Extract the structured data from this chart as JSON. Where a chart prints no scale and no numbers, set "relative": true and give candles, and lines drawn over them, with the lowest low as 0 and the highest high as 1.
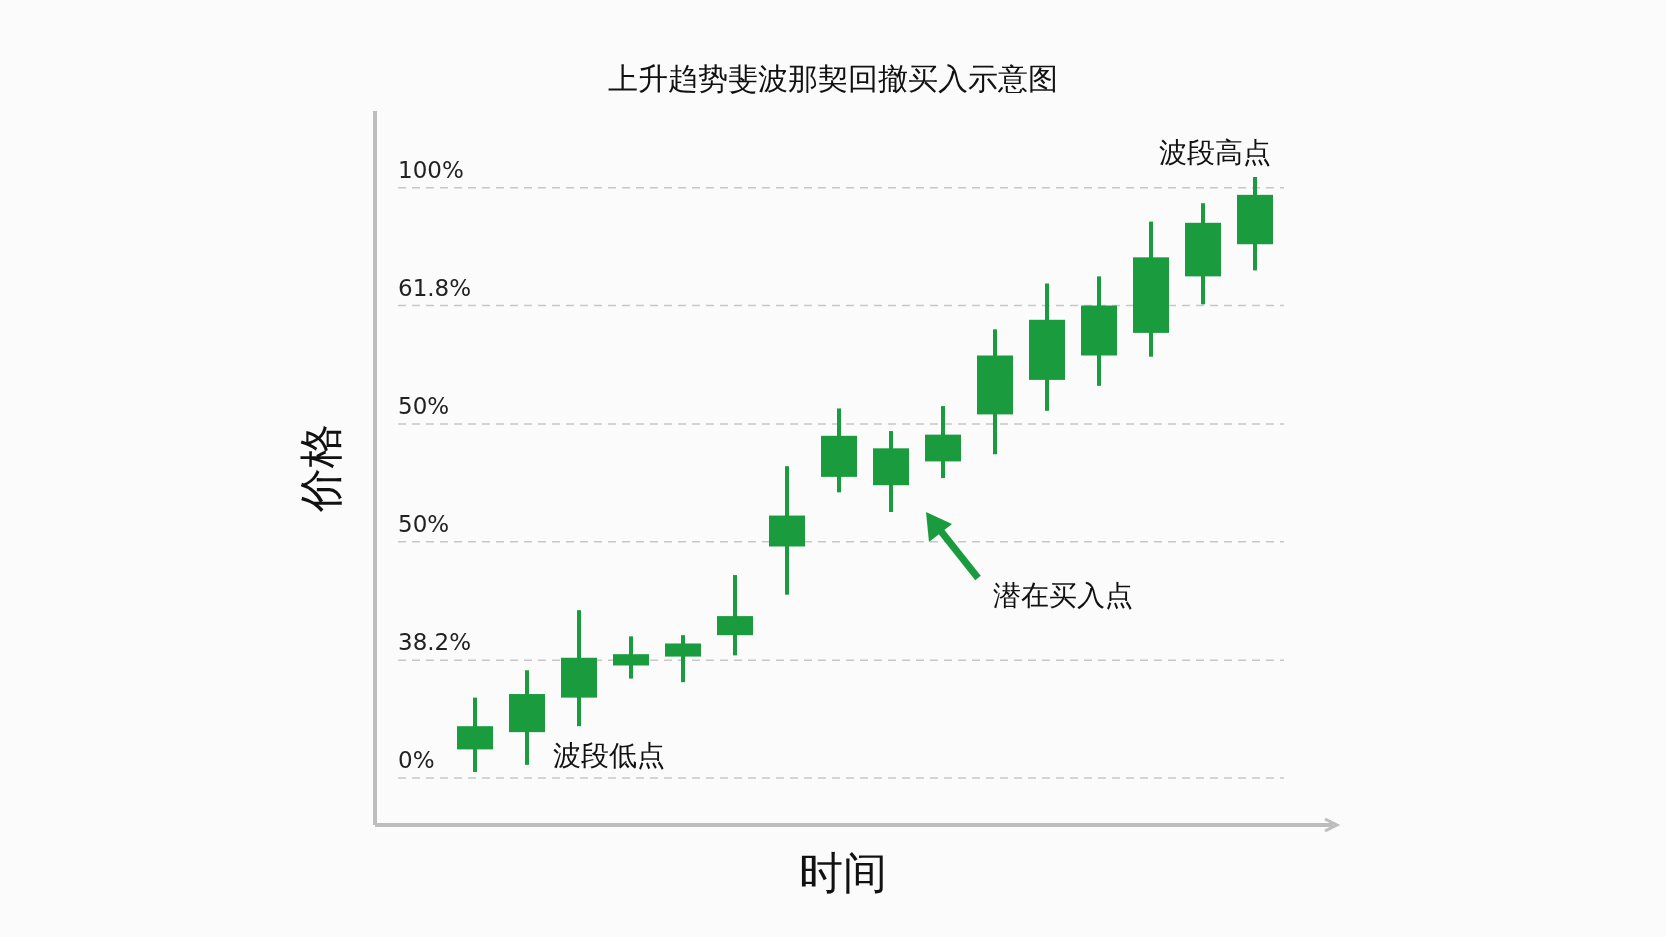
{
  "chart_data": {
    "type": "candlestick",
    "title": "上升趋势斐波那契回撤买入示意图",
    "xlabel": "时间",
    "ylabel": "价格",
    "categories": [
      null,
      null,
      null,
      null,
      null,
      null,
      null,
      null,
      null,
      null,
      null,
      null,
      null,
      null,
      null,
      null
    ],
    "relative": true,
    "ohlc": [
      [
        0.038,
        0.125,
        0,
        0.077
      ],
      [
        0.067,
        0.171,
        0.012,
        0.131
      ],
      [
        0.125,
        0.272,
        0.077,
        0.192
      ],
      [
        0.179,
        0.228,
        0.157,
        0.198
      ],
      [
        0.194,
        0.23,
        0.151,
        0.216
      ],
      [
        0.23,
        0.331,
        0.196,
        0.262
      ],
      [
        0.379,
        0.514,
        0.298,
        0.431
      ],
      [
        0.496,
        0.611,
        0.47,
        0.565
      ],
      [
        0.482,
        0.573,
        0.437,
        0.544
      ],
      [
        0.522,
        0.615,
        0.494,
        0.567
      ],
      [
        0.601,
        0.744,
        0.534,
        0.7
      ],
      [
        0.659,
        0.821,
        0.607,
        0.76
      ],
      [
        0.7,
        0.833,
        0.649,
        0.784
      ],
      [
        0.738,
        0.925,
        0.698,
        0.865
      ],
      [
        0.833,
        0.956,
        0.786,
        0.923
      ],
      [
        0.887,
        1,
        0.843,
        0.97
      ]
    ],
    "color": "#1a9b3e",
    "ref_lines": [
      {
        "axis": "y",
        "value": -0.01,
        "color": "#c8c8c8",
        "line_style": "dashed"
      },
      {
        "axis": "y",
        "value": 0.188,
        "color": "#c8c8c8",
        "line_style": "dashed"
      },
      {
        "axis": "y",
        "value": 0.387,
        "color": "#c8c8c8",
        "line_style": "dashed"
      },
      {
        "axis": "y",
        "value": 0.585,
        "color": "#c8c8c8",
        "line_style": "dashed"
      },
      {
        "axis": "y",
        "value": 0.784,
        "color": "#c8c8c8",
        "line_style": "dashed"
      },
      {
        "axis": "y",
        "value": 0.982,
        "color": "#c8c8c8",
        "line_style": "dashed"
      }
    ],
    "annotations": [
      "波段高点",
      "波段低点",
      "潜在买入点",
      {
        "text": "0%",
        "y": -0.01
      },
      {
        "text": "38.2%",
        "y": 0.188
      },
      {
        "text": "50%",
        "y": 0.387
      },
      {
        "text": "50%",
        "y": 0.585
      },
      {
        "text": "61.8%",
        "y": 0.784
      },
      {
        "text": "100%",
        "y": 0.982
      }
    ]
  }
}
